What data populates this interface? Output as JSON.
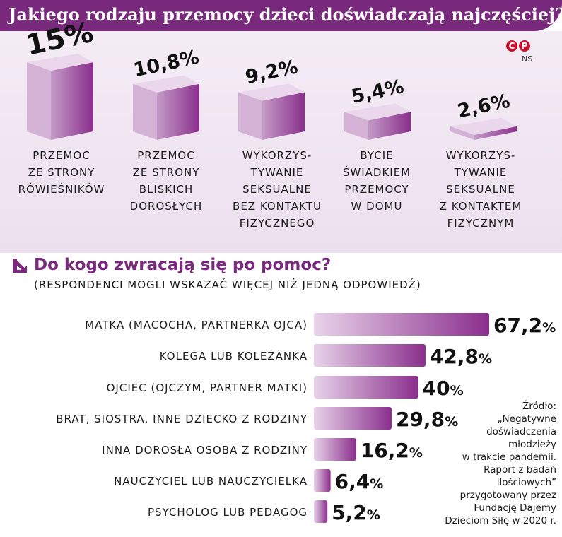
{
  "header": {
    "title": "Jakiego rodzaju przemocy dzieci doświadczają najczęściej?"
  },
  "logo": {
    "letters": [
      "C",
      "P"
    ],
    "initials": "NS"
  },
  "chart_data": [
    {
      "type": "bar",
      "title": "Jakiego rodzaju przemocy dzieci doświadczają najczęściej?",
      "categories": [
        "PRZEMOC\nZE STRONY\nRÓWIEŚNIKÓW",
        "PRZEMOC\nZE STRONY\nBLISKICH\nDOROSŁYCH",
        "WYKORZYS-\nTYWANIE\nSEKSUALNE\nBEZ KONTAKTU\nFIZYCZNEGO",
        "BYCIE\nŚWIADKIEM\nPRZEMOCY\nW DOMU",
        "WYKORZYS-\nTYWANIE\nSEKSUALNE\nZ KONTAKTEM\nFIZYCZNYM"
      ],
      "values": [
        15,
        10.8,
        9.2,
        5.4,
        2.6
      ],
      "value_labels": [
        "15%",
        "10,8%",
        "9,2%",
        "5,4%",
        "2,6%"
      ],
      "unit": "%"
    },
    {
      "type": "bar",
      "orientation": "horizontal",
      "title": "Do kogo zwracają się po pomoc?",
      "subtitle": "(RESPONDENCI MOGLI WSKAZAĆ WIĘCEJ NIŻ JEDNĄ ODPOWIEDŹ)",
      "categories": [
        "MATKA (MACOCHA, PARTNERKA OJCA)",
        "KOLEGA LUB KOLEŻANKA",
        "OJCIEC (OJCZYM, PARTNER MATKI)",
        "BRAT, SIOSTRA, INNE DZIECKO Z RODZINY",
        "INNA DOROSŁA OSOBA Z RODZINY",
        "NAUCZYCIEL LUB NAUCZYCIELKA",
        "PSYCHOLOG LUB PEDAGOG"
      ],
      "values": [
        67.2,
        42.8,
        40,
        29.8,
        16.2,
        6.4,
        5.2
      ],
      "value_labels": [
        "67,2%",
        "42,8%",
        "40%",
        "29,8%",
        "16,2%",
        "6,4%",
        "5,2%"
      ],
      "unit": "%"
    }
  ],
  "source": "Źródło:\n„Negatywne\ndoświadczenia\nmłodzieży\nw trakcie pandemii.\nRaport z badań\nilościowych”\nprzygotowany przez\nFundację Dajemy\nDzieciom Siłę w 2020 r.",
  "colors": {
    "brand": "#7a2a7d",
    "bar_light": "#e6cfe8",
    "bar_dark": "#8a2f8c",
    "bar_top": "#d9bcdb",
    "panel_bg": "#f0e6f1"
  }
}
